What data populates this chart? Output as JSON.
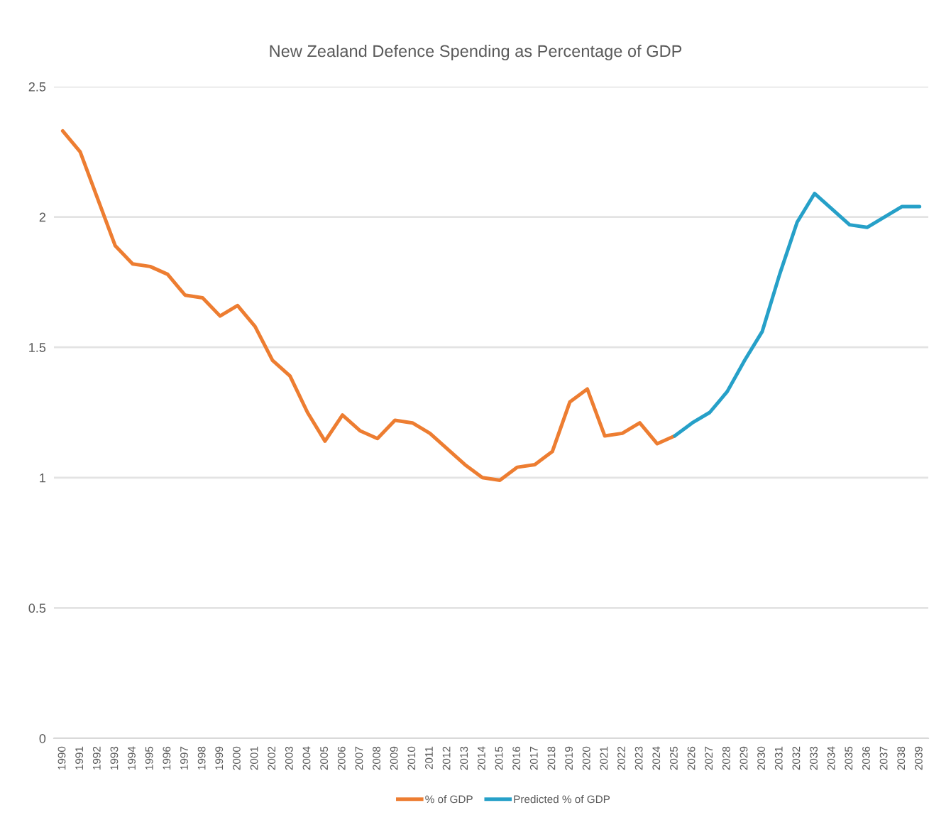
{
  "chart_data": {
    "type": "line",
    "title": "New Zealand Defence Spending as Percentage of GDP",
    "categories": [
      "1990",
      "1991",
      "1992",
      "1993",
      "1994",
      "1995",
      "1996",
      "1997",
      "1998",
      "1999",
      "2000",
      "2001",
      "2002",
      "2003",
      "2004",
      "2005",
      "2006",
      "2007",
      "2008",
      "2009",
      "2010",
      "2011",
      "2012",
      "2013",
      "2014",
      "2015",
      "2016",
      "2017",
      "2018",
      "2019",
      "2020",
      "2021",
      "2022",
      "2023",
      "2024",
      "2025",
      "2026",
      "2027",
      "2028",
      "2029",
      "2030",
      "2031",
      "2032",
      "2033",
      "2034",
      "2035",
      "2036",
      "2037",
      "2038",
      "2039"
    ],
    "series": [
      {
        "name": "% of GDP",
        "color": "#ed7d31",
        "values": [
          2.33,
          2.25,
          2.07,
          1.89,
          1.82,
          1.81,
          1.78,
          1.7,
          1.69,
          1.62,
          1.66,
          1.58,
          1.45,
          1.39,
          1.25,
          1.14,
          1.24,
          1.18,
          1.15,
          1.22,
          1.21,
          1.17,
          1.11,
          1.05,
          1.0,
          0.99,
          1.04,
          1.05,
          1.1,
          1.29,
          1.34,
          1.16,
          1.17,
          1.21,
          1.13,
          1.16,
          null,
          null,
          null,
          null,
          null,
          null,
          null,
          null,
          null,
          null,
          null,
          null,
          null,
          null
        ]
      },
      {
        "name": "Predicted % of GDP",
        "color": "#26a0c8",
        "values": [
          null,
          null,
          null,
          null,
          null,
          null,
          null,
          null,
          null,
          null,
          null,
          null,
          null,
          null,
          null,
          null,
          null,
          null,
          null,
          null,
          null,
          null,
          null,
          null,
          null,
          null,
          null,
          null,
          null,
          null,
          null,
          null,
          null,
          null,
          null,
          1.16,
          1.21,
          1.25,
          1.33,
          1.45,
          1.56,
          1.78,
          1.98,
          2.09,
          2.03,
          1.97,
          1.96,
          2.0,
          2.04,
          2.04
        ]
      }
    ],
    "ylim": [
      0,
      2.5
    ],
    "yticks": [
      0,
      0.5,
      1,
      1.5,
      2,
      2.5
    ],
    "grid": "y",
    "legend": "bottom"
  }
}
